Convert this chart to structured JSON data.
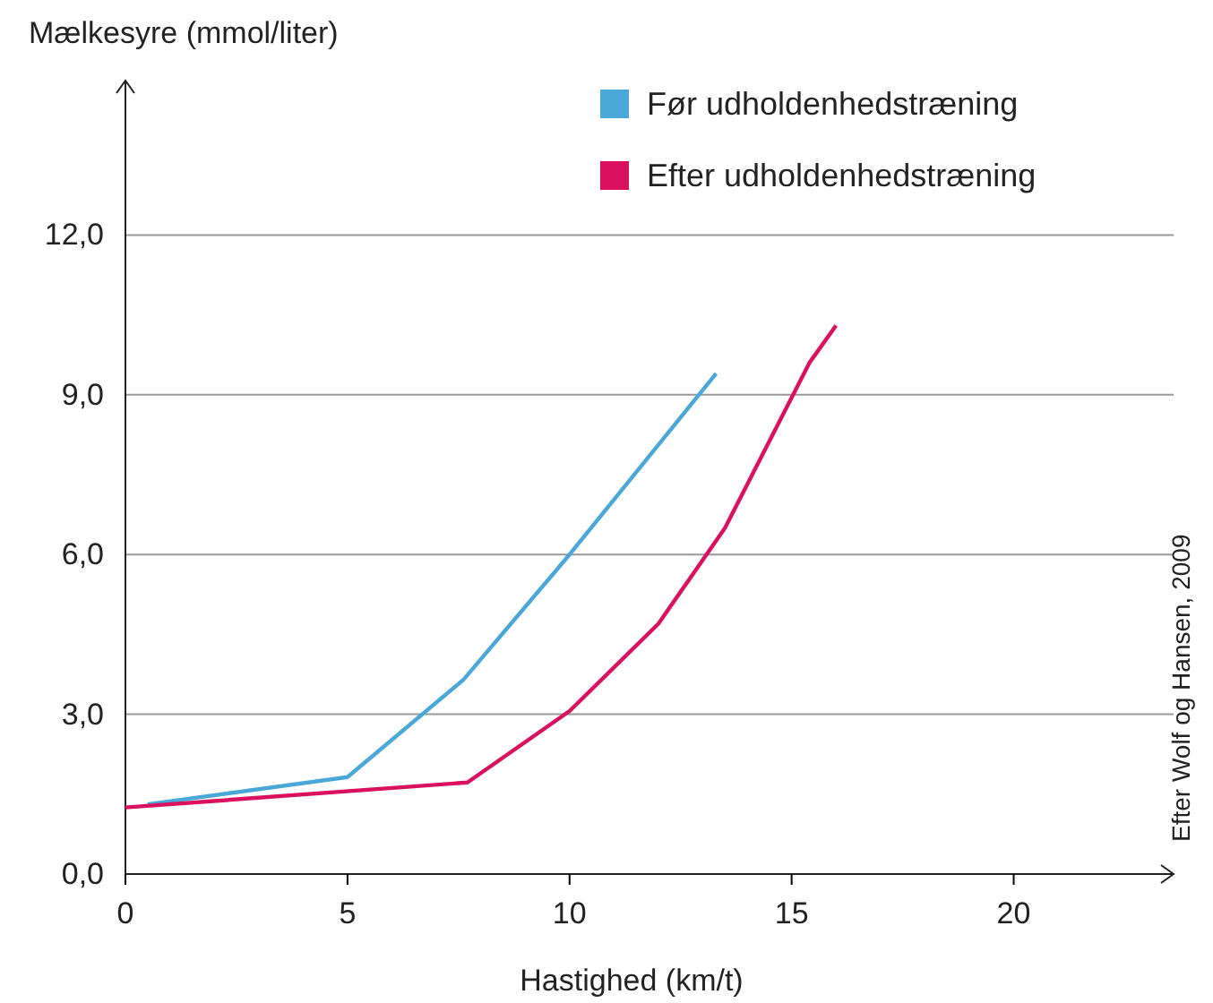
{
  "chart_data": {
    "type": "line",
    "xlabel": "Hastighed (km/t)",
    "ylabel": "Mælkesyre (mmol/liter)",
    "xlim": [
      0,
      23.6
    ],
    "ylim": [
      0,
      14.9
    ],
    "xticks": [
      0,
      5,
      10,
      15,
      20
    ],
    "yticks": [
      {
        "value": 0,
        "label": "0,0"
      },
      {
        "value": 3,
        "label": "3,0"
      },
      {
        "value": 6,
        "label": "6,0"
      },
      {
        "value": 9,
        "label": "9,0"
      },
      {
        "value": 12,
        "label": "12,0"
      }
    ],
    "grid": "y",
    "legend": "top right",
    "marker": "none",
    "line_style": "solid",
    "series": [
      {
        "name": "Før udholdenhedstræning",
        "color": "#4aa8d8",
        "x": [
          0.5,
          5,
          7.6,
          10,
          13.3
        ],
        "values": [
          1.31,
          1.82,
          3.64,
          6.0,
          9.4
        ]
      },
      {
        "name": "Efter udholdenhedstræning",
        "color": "#d9115f",
        "x": [
          0,
          7.7,
          10,
          12,
          13.5,
          15.4,
          16
        ],
        "values": [
          1.25,
          1.72,
          3.06,
          4.7,
          6.5,
          9.6,
          10.3
        ]
      }
    ],
    "annotations": [
      "Efter Wolf og Hansen, 2009"
    ]
  }
}
